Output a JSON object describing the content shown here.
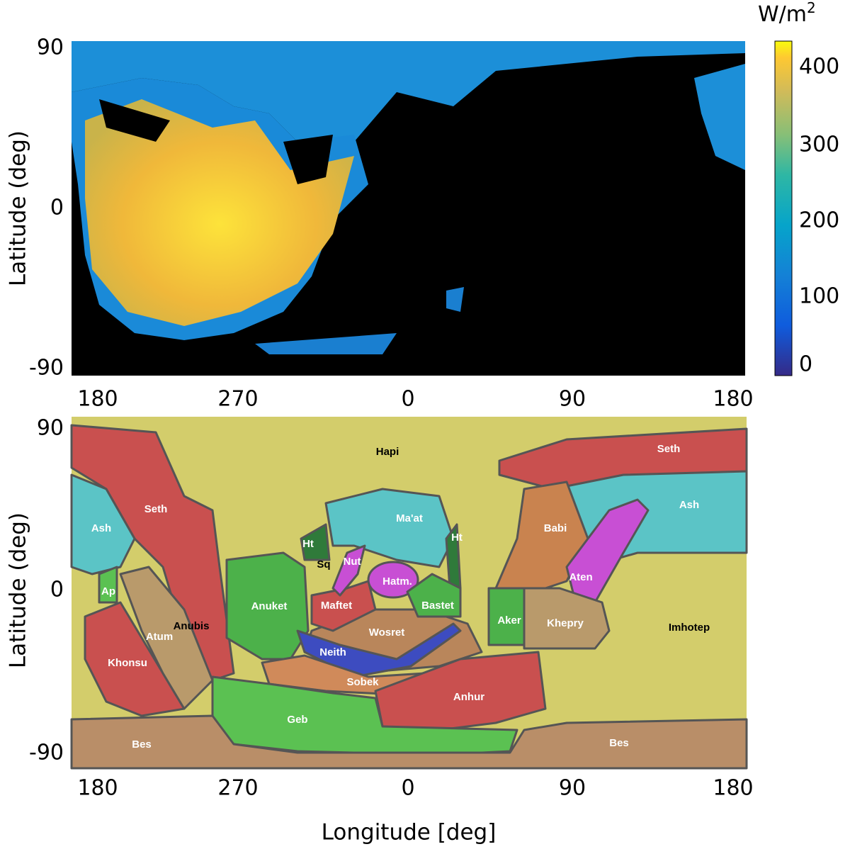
{
  "top_map": {
    "y_label": "Latitude (deg)",
    "y_ticks": [
      "90",
      "0",
      "-90"
    ],
    "x_ticks": [
      "180",
      "270",
      "0",
      "90",
      "180"
    ],
    "colorbar": {
      "unit": "W/m",
      "unit_power": "2",
      "ticks": [
        "400",
        "300",
        "200",
        "100",
        "0"
      ]
    }
  },
  "bottom_map": {
    "y_label": "Latitude (deg)",
    "y_ticks": [
      "90",
      "0",
      "-90"
    ],
    "x_ticks": [
      "180",
      "270",
      "0",
      "90",
      "180"
    ],
    "x_label": "Longitude [deg]",
    "regions": [
      "Hapi",
      "Seth",
      "Seth",
      "Ash",
      "Ash",
      "Ap",
      "Khonsu",
      "Atum",
      "Anubis",
      "Ht",
      "Sq",
      "Ht",
      "Ma'at",
      "Nut",
      "Hatm.",
      "Maftet",
      "Bastet",
      "Anuket",
      "Wosret",
      "Neith",
      "Sobek",
      "Anhur",
      "Geb",
      "Bes",
      "Bes",
      "Babi",
      "Aten",
      "Aker",
      "Khepry",
      "Imhotep"
    ]
  }
}
